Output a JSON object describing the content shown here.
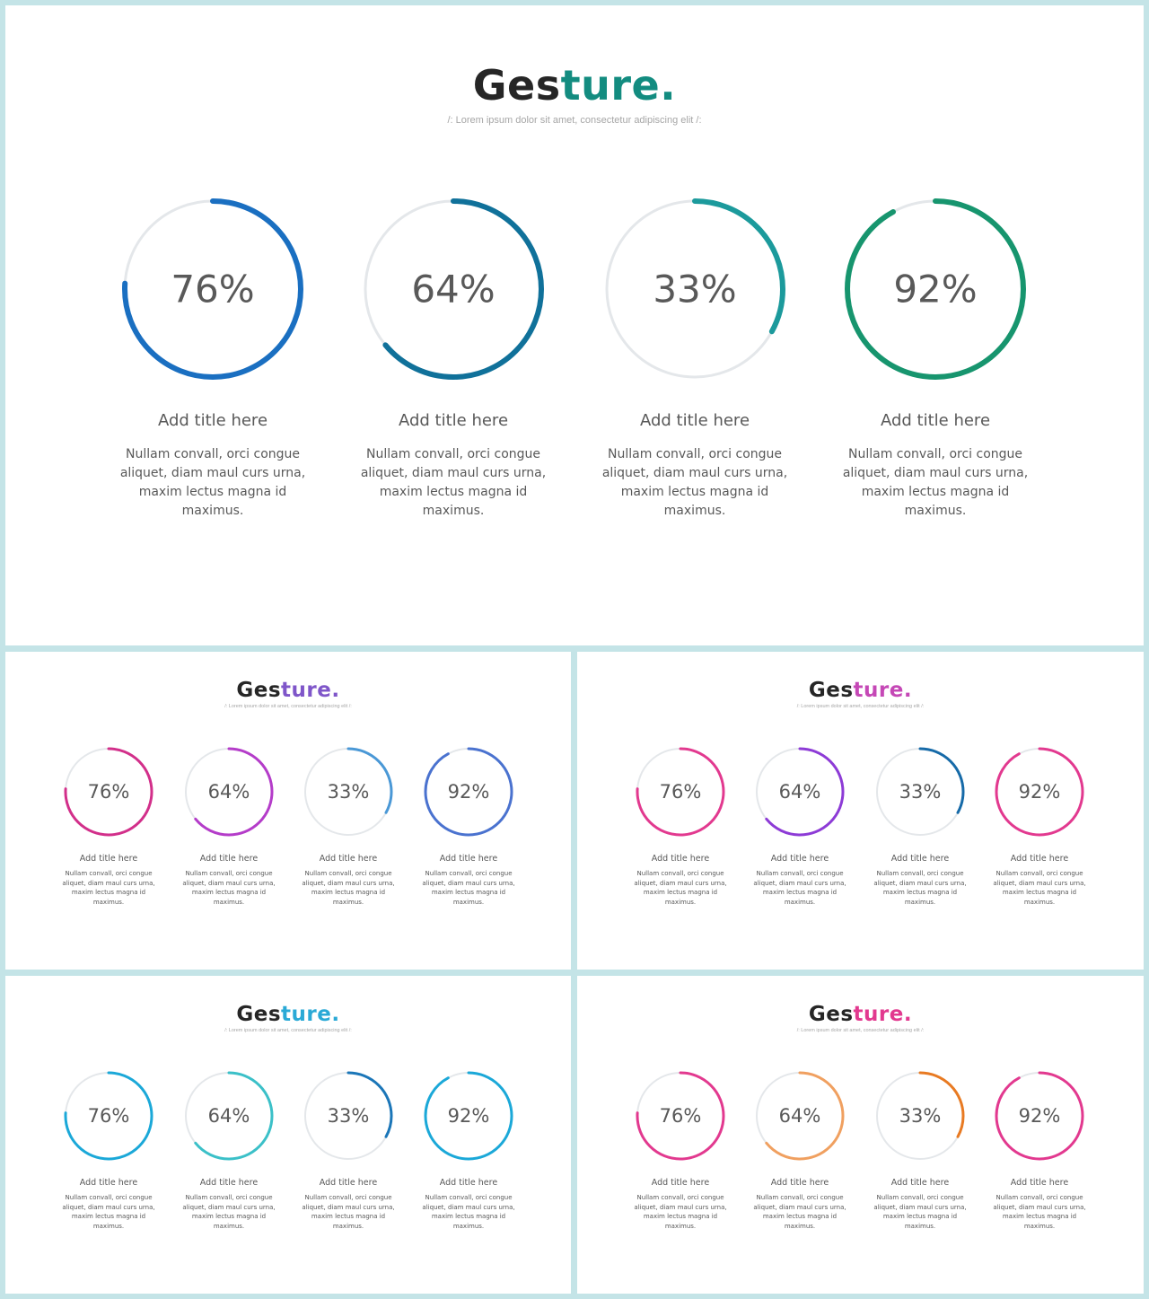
{
  "slides": [
    {
      "title_dark": "Ges",
      "title_accent": "ture.",
      "title_accent_color": "#138c80",
      "subtitle": "/:   Lorem ipsum dolor sit amet, consectetur adipiscing elit   /:",
      "items": [
        {
          "percent_label": "76%",
          "value": 76,
          "color": "#1a6fc1",
          "title": "Add title here",
          "desc": "Nullam convall, orci congue aliquet, diam maul curs urna, maxim lectus magna id maximus."
        },
        {
          "percent_label": "64%",
          "value": 64,
          "color": "#10719a",
          "title": "Add title here",
          "desc": "Nullam convall, orci congue aliquet, diam maul curs urna, maxim lectus magna id maximus."
        },
        {
          "percent_label": "33%",
          "value": 33,
          "color": "#1c9a9c",
          "title": "Add title here",
          "desc": "Nullam convall, orci congue aliquet, diam maul curs urna, maxim lectus magna id maximus."
        },
        {
          "percent_label": "92%",
          "value": 92,
          "color": "#17956e",
          "title": "Add title here",
          "desc": "Nullam convall, orci congue aliquet, diam maul curs urna, maxim lectus magna id maximus."
        }
      ]
    },
    {
      "title_dark": "Ges",
      "title_accent": "ture.",
      "title_accent_color": "#7f56c9",
      "subtitle": "/:   Lorem ipsum dolor sit amet, consectetur adipiscing elit   /:",
      "items": [
        {
          "percent_label": "76%",
          "value": 76,
          "color": "#d22f8a",
          "title": "Add title here",
          "desc": "Nullam convall, orci congue aliquet, diam maul curs urna, maxim lectus magna id maximus."
        },
        {
          "percent_label": "64%",
          "value": 64,
          "color": "#b43cc9",
          "title": "Add title here",
          "desc": "Nullam convall, orci congue aliquet, diam maul curs urna, maxim lectus magna id maximus."
        },
        {
          "percent_label": "33%",
          "value": 33,
          "color": "#4a98d6",
          "title": "Add title here",
          "desc": "Nullam convall, orci congue aliquet, diam maul curs urna, maxim lectus magna id maximus."
        },
        {
          "percent_label": "92%",
          "value": 92,
          "color": "#4a72cf",
          "title": "Add title here",
          "desc": "Nullam convall, orci congue aliquet, diam maul curs urna, maxim lectus magna id maximus."
        }
      ]
    },
    {
      "title_dark": "Ges",
      "title_accent": "ture.",
      "title_accent_color": "#c548b6",
      "subtitle": "/:   Lorem ipsum dolor sit amet, consectetur adipiscing elit   /:",
      "items": [
        {
          "percent_label": "76%",
          "value": 76,
          "color": "#e2398f",
          "title": "Add title here",
          "desc": "Nullam convall, orci congue aliquet, diam maul curs urna, maxim lectus magna id maximus."
        },
        {
          "percent_label": "64%",
          "value": 64,
          "color": "#8d3bd6",
          "title": "Add title here",
          "desc": "Nullam convall, orci congue aliquet, diam maul curs urna, maxim lectus magna id maximus."
        },
        {
          "percent_label": "33%",
          "value": 33,
          "color": "#166aa8",
          "title": "Add title here",
          "desc": "Nullam convall, orci congue aliquet, diam maul curs urna, maxim lectus magna id maximus."
        },
        {
          "percent_label": "92%",
          "value": 92,
          "color": "#e2398f",
          "title": "Add title here",
          "desc": "Nullam convall, orci congue aliquet, diam maul curs urna, maxim lectus magna id maximus."
        }
      ]
    },
    {
      "title_dark": "Ges",
      "title_accent": "ture.",
      "title_accent_color": "#2aa9d6",
      "subtitle": "/:   Lorem ipsum dolor sit amet, consectetur adipiscing elit   /:",
      "items": [
        {
          "percent_label": "76%",
          "value": 76,
          "color": "#1ba8d8",
          "title": "Add title here",
          "desc": "Nullam convall, orci congue aliquet, diam maul curs urna, maxim lectus magna id maximus."
        },
        {
          "percent_label": "64%",
          "value": 64,
          "color": "#3bc0c8",
          "title": "Add title here",
          "desc": "Nullam convall, orci congue aliquet, diam maul curs urna, maxim lectus magna id maximus."
        },
        {
          "percent_label": "33%",
          "value": 33,
          "color": "#1b76b8",
          "title": "Add title here",
          "desc": "Nullam convall, orci congue aliquet, diam maul curs urna, maxim lectus magna id maximus."
        },
        {
          "percent_label": "92%",
          "value": 92,
          "color": "#1ba8d8",
          "title": "Add title here",
          "desc": "Nullam convall, orci congue aliquet, diam maul curs urna, maxim lectus magna id maximus."
        }
      ]
    },
    {
      "title_dark": "Ges",
      "title_accent": "ture.",
      "title_accent_color": "#e2398f",
      "subtitle": "/:   Lorem ipsum dolor sit amet, consectetur adipiscing elit   /:",
      "items": [
        {
          "percent_label": "76%",
          "value": 76,
          "color": "#e2398f",
          "title": "Add title here",
          "desc": "Nullam convall, orci congue aliquet, diam maul curs urna, maxim lectus magna id maximus."
        },
        {
          "percent_label": "64%",
          "value": 64,
          "color": "#f0a060",
          "title": "Add title here",
          "desc": "Nullam convall, orci congue aliquet, diam maul curs urna, maxim lectus magna id maximus."
        },
        {
          "percent_label": "33%",
          "value": 33,
          "color": "#e87a22",
          "title": "Add title here",
          "desc": "Nullam convall, orci congue aliquet, diam maul curs urna, maxim lectus magna id maximus."
        },
        {
          "percent_label": "92%",
          "value": 92,
          "color": "#e2398f",
          "title": "Add title here",
          "desc": "Nullam convall, orci congue aliquet, diam maul curs urna, maxim lectus magna id maximus."
        }
      ]
    }
  ],
  "track_color": "#e4e7ea"
}
